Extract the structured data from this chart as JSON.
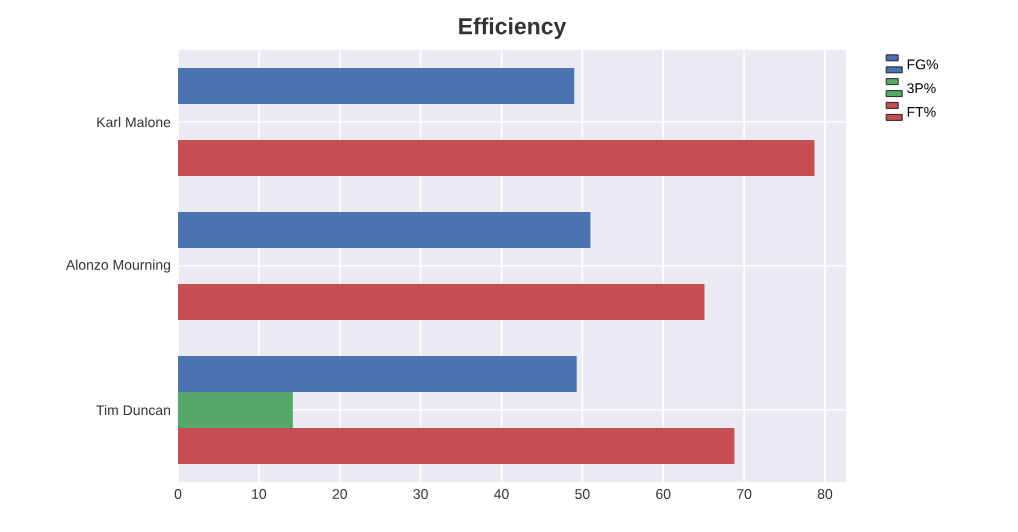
{
  "chart_data": {
    "type": "bar",
    "orientation": "horizontal",
    "title": "Efficiency",
    "categories": [
      "Karl Malone",
      "Alonzo Mourning",
      "Tim Duncan"
    ],
    "series": [
      {
        "name": "FG%",
        "color": "#4c72b0",
        "values": [
          49.0,
          51.0,
          49.3
        ]
      },
      {
        "name": "3P%",
        "color": "#55a868",
        "values": [
          null,
          null,
          14.2
        ]
      },
      {
        "name": "FT%",
        "color": "#c44e52",
        "values": [
          78.7,
          65.1,
          68.8
        ]
      }
    ],
    "xlim": [
      0,
      82.6
    ],
    "xticks": [
      0,
      10,
      20,
      30,
      40,
      50,
      60,
      70,
      80
    ],
    "grid": true,
    "legend": "top right"
  }
}
